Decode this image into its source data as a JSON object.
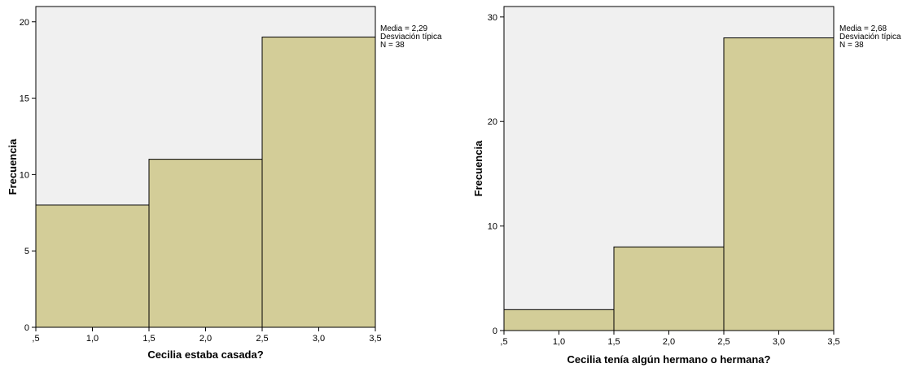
{
  "colors": {
    "plot_background": "#f0f0f0",
    "bar_fill": "#d3cd98",
    "bar_stroke": "#000000"
  },
  "chart_data": [
    {
      "type": "bar",
      "xlabel": "Cecilia estaba casada?",
      "ylabel": "Frecuencia",
      "bins": [
        {
          "start": 0.5,
          "end": 1.5,
          "count": 8
        },
        {
          "start": 1.5,
          "end": 2.5,
          "count": 11
        },
        {
          "start": 2.5,
          "end": 3.5,
          "count": 19
        }
      ],
      "xlim": [
        0.5,
        3.5
      ],
      "ylim": [
        0,
        21
      ],
      "x_ticks": [
        0.5,
        1.0,
        1.5,
        2.0,
        2.5,
        3.0,
        3.5
      ],
      "x_tick_labels": [
        ",5",
        "1,0",
        "1,5",
        "2,0",
        "2,5",
        "3,0",
        "3,5"
      ],
      "y_ticks": [
        0,
        5,
        10,
        15,
        20
      ],
      "y_tick_labels": [
        "0",
        "5",
        "10",
        "15",
        "20"
      ],
      "stats": [
        "Media = 2,29",
        "Desviación típica",
        "N = 38"
      ],
      "grid": false
    },
    {
      "type": "bar",
      "xlabel": "Cecilia tenía algún hermano o hermana?",
      "ylabel": "Frecuencia",
      "bins": [
        {
          "start": 0.5,
          "end": 1.5,
          "count": 2
        },
        {
          "start": 1.5,
          "end": 2.5,
          "count": 8
        },
        {
          "start": 2.5,
          "end": 3.5,
          "count": 28
        }
      ],
      "xlim": [
        0.5,
        3.5
      ],
      "ylim": [
        0,
        31
      ],
      "x_ticks": [
        0.5,
        1.0,
        1.5,
        2.0,
        2.5,
        3.0,
        3.5
      ],
      "x_tick_labels": [
        ",5",
        "1,0",
        "1,5",
        "2,0",
        "2,5",
        "3,0",
        "3,5"
      ],
      "y_ticks": [
        0,
        10,
        20,
        30
      ],
      "y_tick_labels": [
        "0",
        "10",
        "20",
        "30"
      ],
      "stats": [
        "Media = 2,68",
        "Desviación típica",
        "N = 38"
      ],
      "grid": false
    }
  ]
}
